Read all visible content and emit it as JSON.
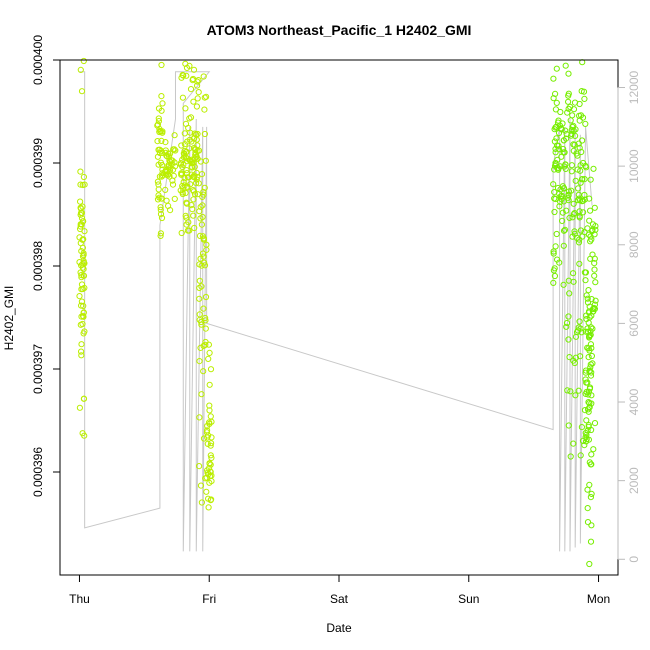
{
  "chart_data": {
    "type": "scatter",
    "title": "ATOM3 Northeast_Pacific_1 H2402_GMI",
    "xlabel": "Date",
    "ylabel": "H2402_GMI",
    "x_tick_labels": [
      "Thu",
      "Fri",
      "Sat",
      "Sun",
      "Mon"
    ],
    "x_tick_values": [
      0,
      1,
      2,
      3,
      4
    ],
    "xlim": [
      -0.15,
      4.15
    ],
    "ylim": [
      0.000395,
      0.0004
    ],
    "y_tick_values": [
      0.000396,
      0.000397,
      0.000398,
      0.000399,
      0.0004
    ],
    "y_tick_labels": [
      "0.000396",
      "0.000397",
      "0.000398",
      "0.000399",
      "0.000400"
    ],
    "y2lim": [
      -400,
      12700
    ],
    "y2_tick_values": [
      0,
      2000,
      4000,
      6000,
      8000,
      10000,
      12000
    ],
    "y2_tick_labels": [
      "0",
      "2000",
      "4000",
      "6000",
      "8000",
      "10000",
      "12000"
    ],
    "series": [
      {
        "role": "H2402_GMI (points, left axis)",
        "color": "#bbee00",
        "color_late": "#77ee00",
        "segments": [
          {
            "x": [
              0.0,
              0.04
            ],
            "ymin": 0.0003963,
            "ymax": 0.0004,
            "center": 0.000398,
            "n": 70
          },
          {
            "x": [
              0.6,
              0.64
            ],
            "ymin": 0.0003979,
            "ymax": 0.0004,
            "center": 0.000399,
            "n": 45
          },
          {
            "x": [
              0.66,
              0.74
            ],
            "ymin": 0.0003985,
            "ymax": 0.0003993,
            "center": 0.000399,
            "n": 40
          },
          {
            "x": [
              0.78,
              0.92
            ],
            "ymin": 0.0003983,
            "ymax": 0.0004,
            "center": 0.000399,
            "n": 120
          },
          {
            "x": [
              0.92,
              0.98
            ],
            "ymin": 0.0003955,
            "ymax": 0.0004,
            "center": 0.000398,
            "n": 60
          },
          {
            "x": [
              0.98,
              1.02
            ],
            "ymin": 0.0003956,
            "ymax": 0.0003973,
            "center": 0.0003962,
            "n": 40
          },
          {
            "x": [
              3.65,
              3.75
            ],
            "ymin": 0.0003978,
            "ymax": 0.0004,
            "center": 0.000399,
            "n": 80
          },
          {
            "x": [
              3.75,
              3.9
            ],
            "ymin": 0.000396,
            "ymax": 0.0004,
            "center": 0.000399,
            "n": 120
          },
          {
            "x": [
              3.9,
              3.95
            ],
            "ymin": 0.000395,
            "ymax": 0.000399,
            "center": 0.000397,
            "n": 90
          },
          {
            "x": [
              3.95,
              3.98
            ],
            "ymin": 0.000396,
            "ymax": 0.000399,
            "center": 0.000398,
            "n": 25
          }
        ]
      },
      {
        "role": "secondary (grey line, right axis)",
        "color": "#c8c8c8",
        "points": [
          [
            0.0,
            12400
          ],
          [
            0.04,
            12400
          ],
          [
            0.04,
            800
          ],
          [
            0.62,
            1300
          ],
          [
            0.62,
            8500
          ],
          [
            0.74,
            11200
          ],
          [
            0.74,
            12400
          ],
          [
            1.0,
            12400
          ],
          [
            0.8,
            11600
          ],
          [
            0.8,
            200
          ],
          [
            0.85,
            11000
          ],
          [
            0.85,
            200
          ],
          [
            0.9,
            11200
          ],
          [
            0.9,
            200
          ],
          [
            0.95,
            11000
          ],
          [
            0.95,
            200
          ],
          [
            0.98,
            11000
          ],
          [
            0.98,
            6000
          ],
          [
            3.65,
            3300
          ],
          [
            3.65,
            10000
          ],
          [
            3.7,
            11000
          ],
          [
            3.7,
            200
          ],
          [
            3.74,
            11000
          ],
          [
            3.74,
            200
          ],
          [
            3.78,
            11200
          ],
          [
            3.78,
            200
          ],
          [
            3.82,
            11000
          ],
          [
            3.82,
            300
          ],
          [
            3.86,
            10800
          ],
          [
            3.86,
            400
          ],
          [
            3.9,
            11000
          ],
          [
            3.95,
            9000
          ]
        ]
      }
    ],
    "grid": false,
    "legend": "none"
  }
}
